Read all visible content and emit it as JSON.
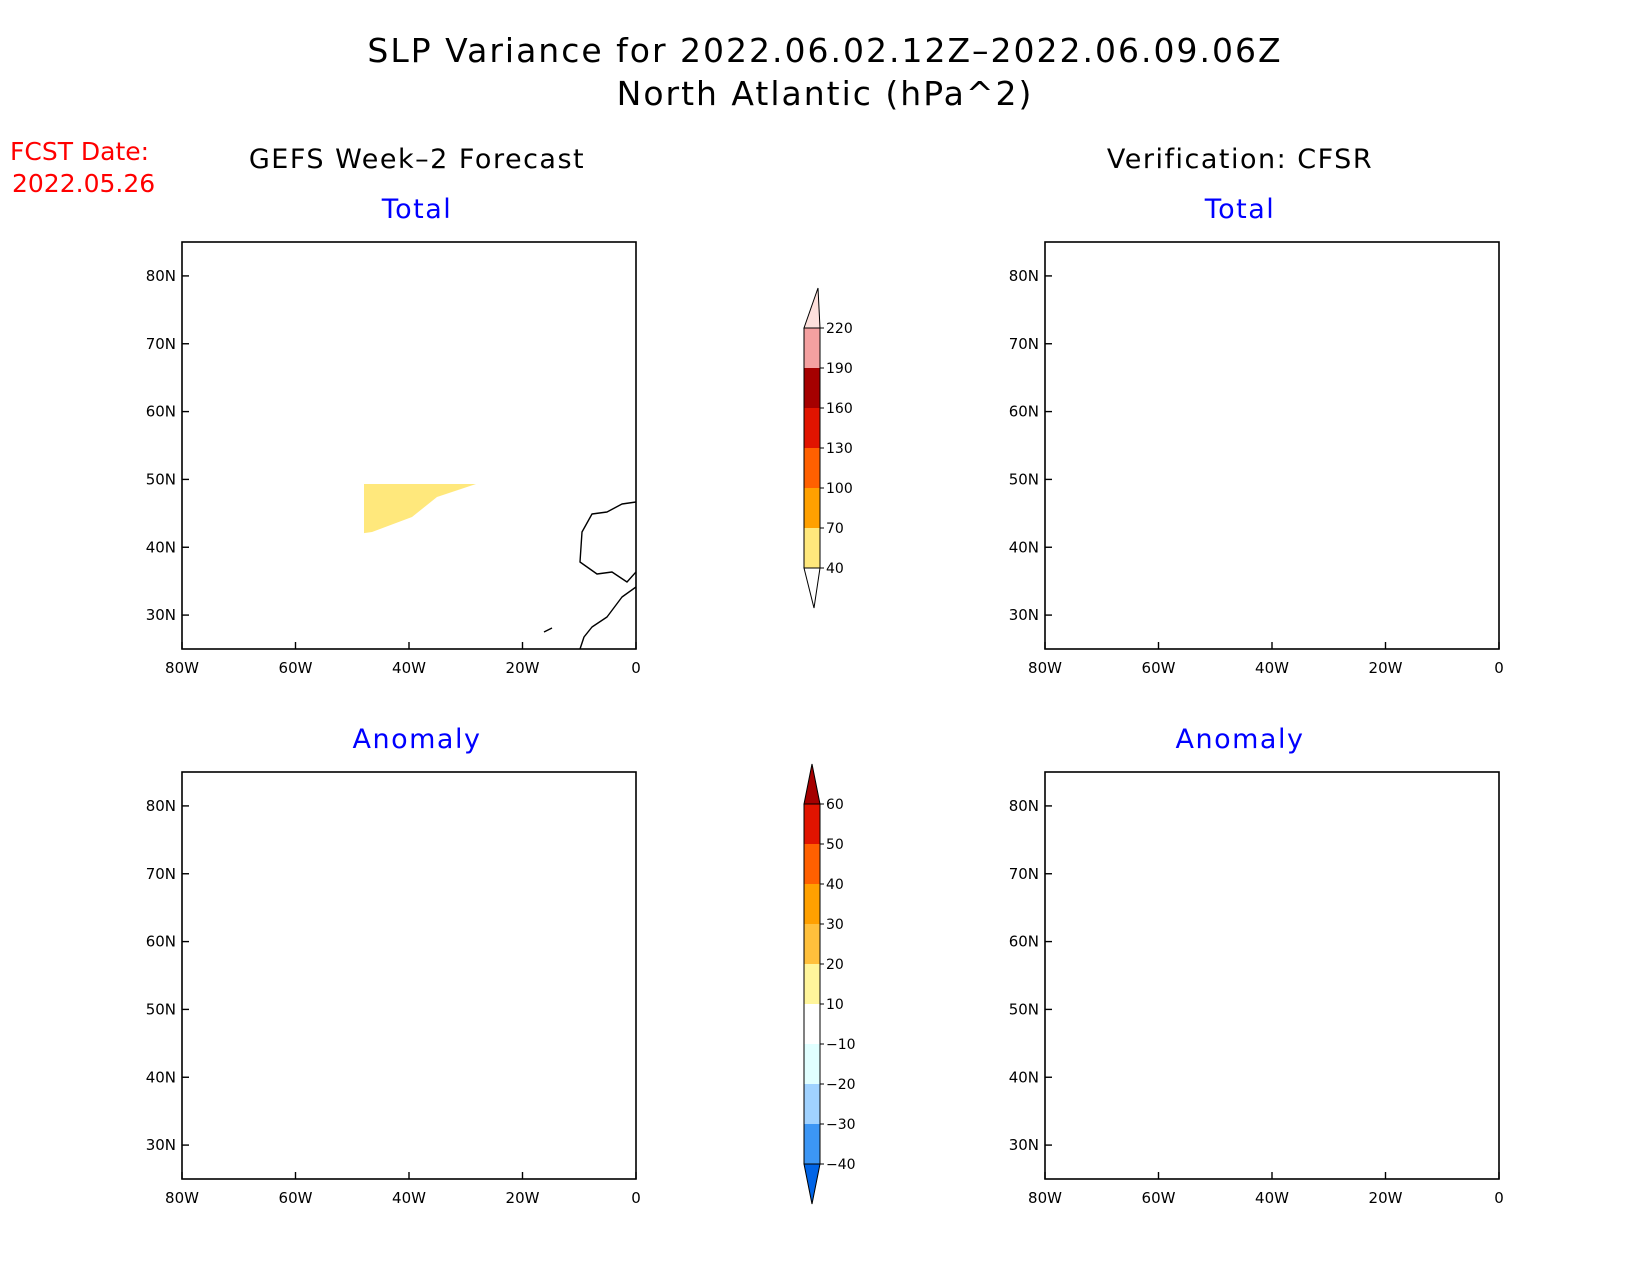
{
  "title": {
    "line1": "SLP Variance for 2022.06.02.12Z–2022.06.09.06Z",
    "line2": "North Atlantic (hPa^2)"
  },
  "fcst_date": {
    "label": "FCST Date:",
    "value": "2022.05.26",
    "color": "#ff0000"
  },
  "column_headers": {
    "left": "GEFS Week–2 Forecast",
    "right": "Verification: CFSR"
  },
  "subtitle_color": "#0000ff",
  "panels": [
    {
      "id": "gefs-total",
      "subtitle": "Total"
    },
    {
      "id": "cfsr-total",
      "subtitle": "Total"
    },
    {
      "id": "gefs-anomaly",
      "subtitle": "Anomaly"
    },
    {
      "id": "cfsr-anomaly",
      "subtitle": "Anomaly"
    }
  ],
  "axes": {
    "x_ticks": [
      "80W",
      "60W",
      "40W",
      "20W",
      "0"
    ],
    "y_ticks": [
      "80N",
      "70N",
      "60N",
      "50N",
      "40N",
      "30N"
    ],
    "lon_range": [
      -80,
      0
    ],
    "lat_range": [
      25,
      85
    ]
  },
  "colorbars": {
    "total": {
      "levels": [
        "40",
        "70",
        "100",
        "130",
        "160",
        "190",
        "220"
      ],
      "colors": [
        "#ffe87c",
        "#ffa000",
        "#ff6000",
        "#e11400",
        "#a50000",
        "#f4a0a0",
        "#fde0dc"
      ]
    },
    "anomaly": {
      "levels": [
        "−40",
        "−30",
        "−20",
        "−10",
        "10",
        "20",
        "30",
        "40",
        "50",
        "60"
      ],
      "colors": [
        "#0064e6",
        "#1e6ee6",
        "#3c96f5",
        "#a0d2ff",
        "#e1ffff",
        "#ffffff",
        "#fff59b",
        "#ffc03c",
        "#ffa000",
        "#ff6000",
        "#e11400",
        "#a50000"
      ]
    }
  }
}
